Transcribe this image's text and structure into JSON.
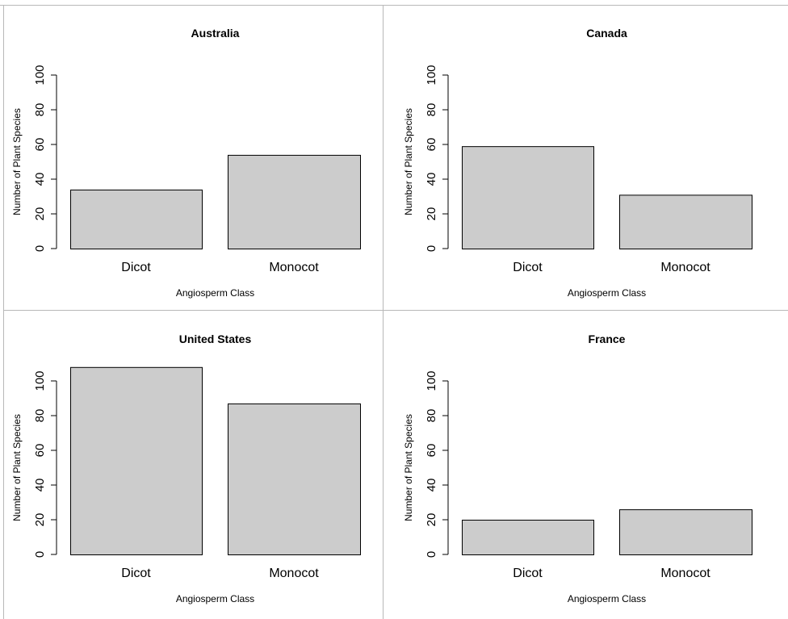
{
  "chart_data": [
    {
      "type": "bar",
      "title": "Australia",
      "xlabel": "Angiosperm Class",
      "ylabel": "Number of Plant Species",
      "categories": [
        "Dicot",
        "Monocot"
      ],
      "values": [
        34,
        54
      ],
      "ylim": [
        0,
        100
      ],
      "yticks": [
        "0",
        "20",
        "40",
        "60",
        "80",
        "100"
      ],
      "bar_color": "#cccccc",
      "grid": false,
      "legend": "none"
    },
    {
      "type": "bar",
      "title": "Canada",
      "xlabel": "Angiosperm Class",
      "ylabel": "Number of Plant Species",
      "categories": [
        "Dicot",
        "Monocot"
      ],
      "values": [
        59,
        31
      ],
      "ylim": [
        0,
        100
      ],
      "yticks": [
        "0",
        "20",
        "40",
        "60",
        "80",
        "100"
      ],
      "bar_color": "#cccccc",
      "grid": false,
      "legend": "none"
    },
    {
      "type": "bar",
      "title": "United States",
      "xlabel": "Angiosperm Class",
      "ylabel": "Number of Plant Species",
      "categories": [
        "Dicot",
        "Monocot"
      ],
      "values": [
        108,
        87
      ],
      "ylim": [
        0,
        108
      ],
      "yticks": [
        "0",
        "20",
        "40",
        "60",
        "80",
        "100"
      ],
      "bar_color": "#cccccc",
      "grid": false,
      "legend": "none"
    },
    {
      "type": "bar",
      "title": "France",
      "xlabel": "Angiosperm Class",
      "ylabel": "Number of Plant Species",
      "categories": [
        "Dicot",
        "Monocot"
      ],
      "values": [
        20,
        26
      ],
      "ylim": [
        0,
        100
      ],
      "yticks": [
        "0",
        "20",
        "40",
        "60",
        "80",
        "100"
      ],
      "bar_color": "#cccccc",
      "grid": false,
      "legend": "none"
    }
  ]
}
